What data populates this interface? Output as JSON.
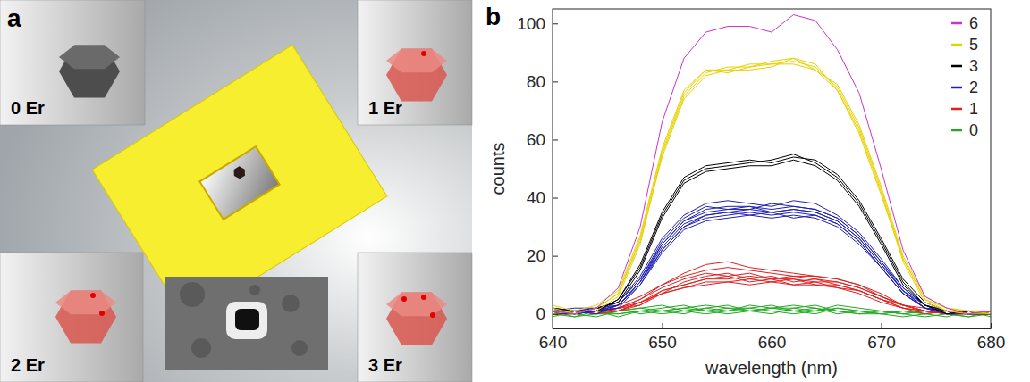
{
  "panel_a": {
    "label": "a",
    "insets": [
      {
        "label": "0 Er",
        "er": 0
      },
      {
        "label": "1 Er",
        "er": 1
      },
      {
        "label": "2 Er",
        "er": 2
      },
      {
        "label": "3 Er",
        "er": 3
      }
    ]
  },
  "panel_b": {
    "label": "b"
  },
  "chart_data": {
    "type": "line",
    "x_label": "wavelength (nm)",
    "y_label": "counts",
    "x": [
      640,
      642,
      644,
      646,
      648,
      650,
      652,
      654,
      656,
      658,
      660,
      662,
      664,
      666,
      668,
      670,
      672,
      674,
      676,
      678,
      680
    ],
    "xlim": [
      640,
      680
    ],
    "xticks": [
      640,
      650,
      660,
      670,
      680
    ],
    "ylim": [
      -5,
      105
    ],
    "yticks": [
      0,
      20,
      40,
      60,
      80,
      100
    ],
    "grid": false,
    "legend": "upper right",
    "series": [
      {
        "name": "6",
        "color": "#cc33cc",
        "values": [
          [
            1,
            0,
            2,
            9,
            30,
            66,
            88,
            97,
            99,
            99,
            97,
            103,
            101,
            91,
            76,
            50,
            22,
            6,
            2,
            0,
            1
          ]
        ]
      },
      {
        "name": "5",
        "color": "#e6d200",
        "values": [
          [
            2,
            0,
            2,
            7,
            26,
            56,
            76,
            84,
            84,
            86,
            86,
            87,
            85,
            78,
            64,
            43,
            19,
            5,
            2,
            1,
            0
          ],
          [
            0,
            1,
            1,
            6,
            24,
            55,
            75,
            83,
            85,
            85,
            87,
            88,
            84,
            77,
            63,
            42,
            18,
            4,
            1,
            0,
            1
          ],
          [
            3,
            1,
            3,
            8,
            27,
            57,
            77,
            84,
            83,
            85,
            86,
            86,
            84,
            79,
            65,
            44,
            20,
            6,
            2,
            1,
            0
          ],
          [
            1,
            0,
            2,
            7,
            25,
            54,
            74,
            82,
            84,
            84,
            85,
            88,
            86,
            77,
            62,
            41,
            19,
            5,
            1,
            0,
            0
          ]
        ]
      },
      {
        "name": "3",
        "color": "#000000",
        "values": [
          [
            0,
            1,
            1,
            5,
            16,
            34,
            46,
            50,
            51,
            52,
            53,
            55,
            52,
            47,
            38,
            25,
            11,
            3,
            1,
            0,
            1
          ],
          [
            1,
            0,
            2,
            4,
            15,
            33,
            45,
            49,
            50,
            51,
            51,
            53,
            51,
            46,
            37,
            24,
            10,
            3,
            0,
            1,
            0
          ],
          [
            2,
            1,
            1,
            5,
            17,
            35,
            47,
            51,
            52,
            53,
            52,
            54,
            53,
            48,
            39,
            26,
            12,
            4,
            1,
            0,
            0
          ]
        ]
      },
      {
        "name": "2",
        "color": "#1f1fb4",
        "values": [
          [
            1,
            0,
            1,
            3,
            11,
            23,
            31,
            34,
            35,
            36,
            35,
            36,
            35,
            32,
            26,
            17,
            8,
            2,
            1,
            0,
            0
          ],
          [
            0,
            1,
            2,
            4,
            12,
            24,
            32,
            36,
            37,
            37,
            36,
            37,
            36,
            33,
            27,
            18,
            8,
            3,
            0,
            1,
            1
          ],
          [
            2,
            0,
            1,
            3,
            10,
            22,
            30,
            33,
            34,
            35,
            34,
            35,
            34,
            31,
            25,
            16,
            7,
            2,
            1,
            0,
            0
          ],
          [
            1,
            2,
            2,
            4,
            13,
            26,
            34,
            38,
            39,
            38,
            37,
            39,
            38,
            34,
            28,
            19,
            9,
            3,
            1,
            0,
            1
          ],
          [
            0,
            0,
            1,
            2,
            10,
            21,
            29,
            32,
            33,
            34,
            33,
            34,
            33,
            30,
            24,
            16,
            7,
            2,
            0,
            1,
            0
          ],
          [
            1,
            1,
            2,
            3,
            11,
            24,
            32,
            35,
            36,
            37,
            35,
            36,
            35,
            32,
            26,
            17,
            8,
            2,
            1,
            0,
            0
          ],
          [
            2,
            1,
            1,
            4,
            12,
            25,
            33,
            37,
            36,
            36,
            38,
            37,
            36,
            33,
            27,
            18,
            9,
            3,
            1,
            1,
            1
          ],
          [
            0,
            1,
            0,
            3,
            11,
            22,
            30,
            34,
            35,
            34,
            35,
            33,
            34,
            31,
            25,
            16,
            7,
            2,
            0,
            0,
            0
          ]
        ]
      },
      {
        "name": "1",
        "color": "#e0201f",
        "values": [
          [
            1,
            0,
            1,
            2,
            4,
            8,
            10,
            12,
            12,
            13,
            12,
            12,
            11,
            11,
            9,
            6,
            3,
            1,
            0,
            1,
            0
          ],
          [
            0,
            1,
            0,
            1,
            3,
            7,
            11,
            13,
            14,
            12,
            13,
            11,
            12,
            10,
            8,
            5,
            2,
            1,
            1,
            0,
            1
          ],
          [
            2,
            1,
            1,
            2,
            5,
            9,
            12,
            14,
            13,
            14,
            12,
            13,
            12,
            11,
            9,
            6,
            3,
            1,
            0,
            0,
            0
          ],
          [
            1,
            0,
            2,
            1,
            4,
            7,
            9,
            11,
            11,
            12,
            11,
            12,
            10,
            10,
            8,
            5,
            2,
            0,
            1,
            1,
            0
          ],
          [
            0,
            0,
            1,
            2,
            5,
            10,
            13,
            15,
            16,
            15,
            14,
            13,
            13,
            12,
            10,
            7,
            3,
            1,
            0,
            0,
            1
          ],
          [
            1,
            1,
            0,
            2,
            3,
            8,
            10,
            12,
            13,
            11,
            12,
            10,
            11,
            9,
            8,
            5,
            3,
            1,
            1,
            0,
            0
          ],
          [
            0,
            1,
            1,
            3,
            6,
            10,
            14,
            17,
            18,
            16,
            15,
            14,
            13,
            12,
            10,
            6,
            3,
            2,
            0,
            1,
            0
          ],
          [
            1,
            0,
            1,
            1,
            4,
            7,
            9,
            10,
            11,
            10,
            11,
            10,
            10,
            9,
            7,
            4,
            2,
            1,
            0,
            0,
            1
          ]
        ]
      },
      {
        "name": "0",
        "color": "#22aa22",
        "values": [
          [
            1,
            0,
            -1,
            1,
            2,
            1,
            0,
            2,
            1,
            3,
            2,
            1,
            0,
            2,
            1,
            0,
            1,
            0,
            -1,
            1,
            0
          ],
          [
            0,
            -1,
            1,
            0,
            1,
            2,
            3,
            1,
            2,
            1,
            0,
            2,
            3,
            1,
            0,
            1,
            0,
            1,
            0,
            -1,
            1
          ],
          [
            -1,
            1,
            0,
            2,
            0,
            1,
            2,
            3,
            2,
            2,
            1,
            0,
            1,
            2,
            1,
            0,
            -1,
            0,
            1,
            0,
            0
          ],
          [
            2,
            0,
            1,
            -1,
            1,
            0,
            1,
            2,
            3,
            1,
            2,
            3,
            2,
            0,
            1,
            1,
            0,
            -1,
            0,
            1,
            -1
          ],
          [
            0,
            1,
            0,
            1,
            2,
            3,
            1,
            0,
            1,
            2,
            3,
            1,
            2,
            1,
            0,
            0,
            1,
            0,
            1,
            0,
            1
          ],
          [
            1,
            -1,
            0,
            0,
            1,
            1,
            2,
            1,
            0,
            1,
            2,
            2,
            1,
            3,
            2,
            1,
            0,
            1,
            0,
            -1,
            0
          ]
        ]
      }
    ]
  }
}
